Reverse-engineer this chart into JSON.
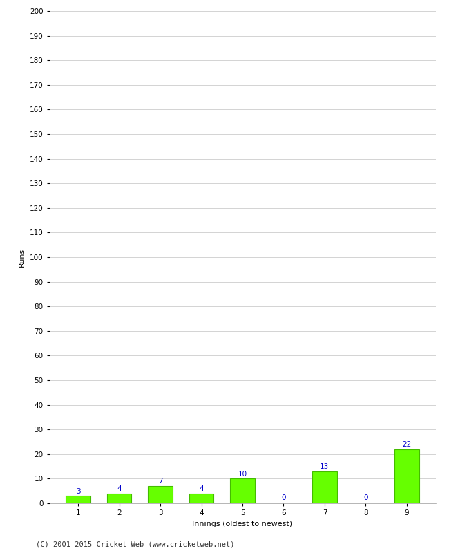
{
  "categories": [
    "1",
    "2",
    "3",
    "4",
    "5",
    "6",
    "7",
    "8",
    "9"
  ],
  "values": [
    3,
    4,
    7,
    4,
    10,
    0,
    13,
    0,
    22
  ],
  "bar_color": "#66ff00",
  "bar_edge_color": "#44bb00",
  "ylabel": "Runs",
  "xlabel": "Innings (oldest to newest)",
  "ylim": [
    0,
    200
  ],
  "yticks": [
    0,
    10,
    20,
    30,
    40,
    50,
    60,
    70,
    80,
    90,
    100,
    110,
    120,
    130,
    140,
    150,
    160,
    170,
    180,
    190,
    200
  ],
  "label_color": "#0000cc",
  "label_fontsize": 7.5,
  "axis_fontsize": 8,
  "tick_fontsize": 7.5,
  "footer_text": "(C) 2001-2015 Cricket Web (www.cricketweb.net)",
  "footer_fontsize": 7.5,
  "background_color": "#ffffff",
  "grid_color": "#cccccc"
}
